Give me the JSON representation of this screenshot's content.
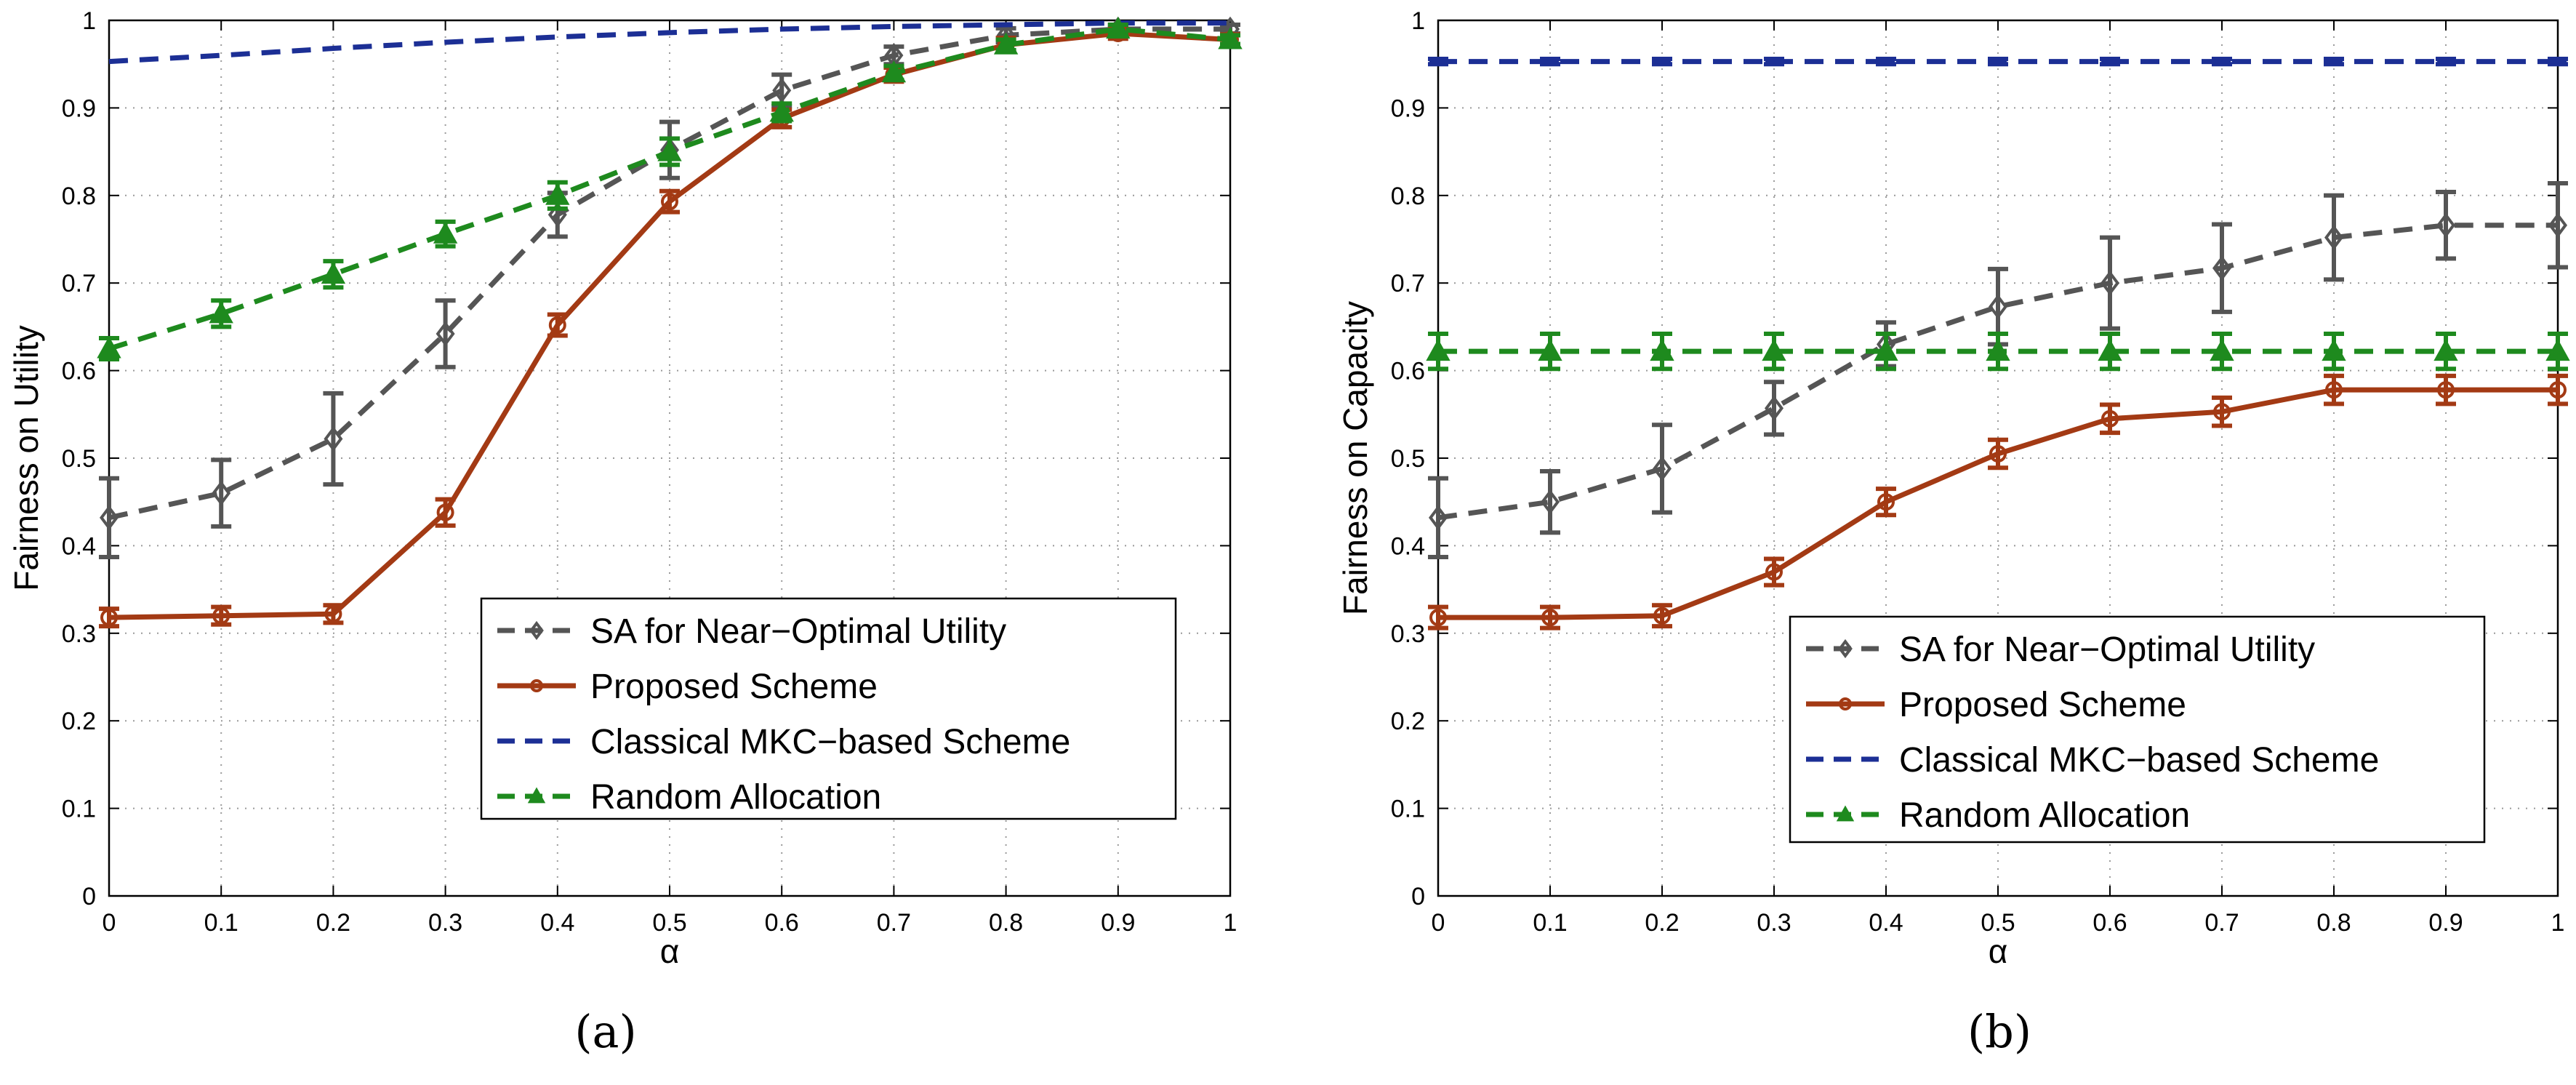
{
  "colors": {
    "sa": "#555555",
    "proposed": "#a33a14",
    "classical": "#1c2f95",
    "random": "#1e8a1e",
    "grid": "#9a9a9a"
  },
  "chart_data": [
    {
      "type": "line",
      "panel": "a",
      "caption": "(a)",
      "xlabel": "α",
      "ylabel": "Fairness on Utility",
      "xlim": [
        0,
        1
      ],
      "ylim": [
        0,
        1
      ],
      "xticks": [
        0,
        0.1,
        0.2,
        0.3,
        0.4,
        0.5,
        0.6,
        0.7,
        0.8,
        0.9,
        1
      ],
      "xtick_labels": [
        "0",
        "0.1",
        "0.2",
        "0.3",
        "0.4",
        "0.5",
        "0.6",
        "0.7",
        "0.8",
        "0.9",
        "1"
      ],
      "yticks": [
        0,
        0.1,
        0.2,
        0.3,
        0.4,
        0.5,
        0.6,
        0.7,
        0.8,
        0.9,
        1
      ],
      "ytick_labels": [
        "0",
        "0.1",
        "0.2",
        "0.3",
        "0.4",
        "0.5",
        "0.6",
        "0.7",
        "0.8",
        "0.9",
        "1"
      ],
      "grid": true,
      "legend_position": "bottom-right",
      "x": [
        0,
        0.1,
        0.2,
        0.3,
        0.4,
        0.5,
        0.6,
        0.7,
        0.8,
        0.9,
        1
      ],
      "series": [
        {
          "name": "SA for Near−Optimal Utility",
          "color_key": "sa",
          "dash": true,
          "marker": "diamond",
          "values": [
            0.432,
            0.46,
            0.522,
            0.642,
            0.778,
            0.852,
            0.92,
            0.96,
            0.983,
            0.99,
            0.99
          ],
          "errors": [
            0.045,
            0.038,
            0.052,
            0.038,
            0.025,
            0.032,
            0.018,
            0.01,
            0.008,
            0.005,
            0.005
          ]
        },
        {
          "name": "Proposed Scheme",
          "color_key": "proposed",
          "dash": false,
          "marker": "circle",
          "values": [
            0.318,
            0.32,
            0.322,
            0.438,
            0.652,
            0.793,
            0.888,
            0.938,
            0.972,
            0.985,
            0.978
          ],
          "errors": [
            0.01,
            0.01,
            0.01,
            0.015,
            0.012,
            0.012,
            0.01,
            0.008,
            0.008,
            0.006,
            0.006
          ]
        },
        {
          "name": "Classical MKC−based Scheme",
          "color_key": "classical",
          "dash": true,
          "marker": "none",
          "values": [
            0.953,
            0.96,
            0.968,
            0.975,
            0.981,
            0.986,
            0.99,
            0.993,
            0.995,
            0.997,
            0.997
          ],
          "errors": [
            0,
            0,
            0,
            0,
            0,
            0,
            0,
            0,
            0,
            0,
            0
          ]
        },
        {
          "name": "Random Allocation",
          "color_key": "random",
          "dash": true,
          "marker": "triangle",
          "values": [
            0.625,
            0.665,
            0.71,
            0.756,
            0.8,
            0.85,
            0.895,
            0.94,
            0.972,
            0.99,
            0.978
          ],
          "errors": [
            0.012,
            0.015,
            0.015,
            0.014,
            0.015,
            0.015,
            0.01,
            0.008,
            0.006,
            0.005,
            0.005
          ]
        }
      ]
    },
    {
      "type": "line",
      "panel": "b",
      "caption": "(b)",
      "xlabel": "α",
      "ylabel": "Fairness on Capacity",
      "xlim": [
        0,
        1
      ],
      "ylim": [
        0,
        1
      ],
      "xticks": [
        0,
        0.1,
        0.2,
        0.3,
        0.4,
        0.5,
        0.6,
        0.7,
        0.8,
        0.9,
        1
      ],
      "xtick_labels": [
        "0",
        "0.1",
        "0.2",
        "0.3",
        "0.4",
        "0.5",
        "0.6",
        "0.7",
        "0.8",
        "0.9",
        "1"
      ],
      "yticks": [
        0,
        0.1,
        0.2,
        0.3,
        0.4,
        0.5,
        0.6,
        0.7,
        0.8,
        0.9,
        1
      ],
      "ytick_labels": [
        "0",
        "0.1",
        "0.2",
        "0.3",
        "0.4",
        "0.5",
        "0.6",
        "0.7",
        "0.8",
        "0.9",
        "1"
      ],
      "grid": true,
      "legend_position": "lower-middle-right",
      "x": [
        0,
        0.1,
        0.2,
        0.3,
        0.4,
        0.5,
        0.6,
        0.7,
        0.8,
        0.9,
        1
      ],
      "series": [
        {
          "name": "SA for Near−Optimal Utility",
          "color_key": "sa",
          "dash": true,
          "marker": "diamond",
          "values": [
            0.432,
            0.45,
            0.488,
            0.557,
            0.63,
            0.673,
            0.7,
            0.717,
            0.752,
            0.766,
            0.766
          ],
          "errors": [
            0.045,
            0.035,
            0.05,
            0.03,
            0.025,
            0.043,
            0.052,
            0.05,
            0.048,
            0.038,
            0.048
          ]
        },
        {
          "name": "Proposed Scheme",
          "color_key": "proposed",
          "dash": false,
          "marker": "circle",
          "values": [
            0.318,
            0.318,
            0.32,
            0.37,
            0.45,
            0.505,
            0.545,
            0.553,
            0.578,
            0.578,
            0.578
          ],
          "errors": [
            0.012,
            0.012,
            0.012,
            0.015,
            0.015,
            0.016,
            0.016,
            0.016,
            0.016,
            0.016,
            0.016
          ]
        },
        {
          "name": "Classical MKC−based Scheme",
          "color_key": "classical",
          "dash": true,
          "marker": "bar",
          "values": [
            0.953,
            0.953,
            0.953,
            0.953,
            0.953,
            0.953,
            0.953,
            0.953,
            0.953,
            0.953,
            0.953
          ],
          "errors": [
            0.003,
            0.003,
            0.003,
            0.003,
            0.003,
            0.003,
            0.003,
            0.003,
            0.003,
            0.003,
            0.003
          ]
        },
        {
          "name": "Random Allocation",
          "color_key": "random",
          "dash": true,
          "marker": "triangle",
          "values": [
            0.622,
            0.622,
            0.622,
            0.622,
            0.622,
            0.622,
            0.622,
            0.622,
            0.622,
            0.622,
            0.622
          ],
          "errors": [
            0.02,
            0.02,
            0.02,
            0.02,
            0.02,
            0.02,
            0.02,
            0.02,
            0.02,
            0.02,
            0.02
          ]
        }
      ]
    }
  ]
}
